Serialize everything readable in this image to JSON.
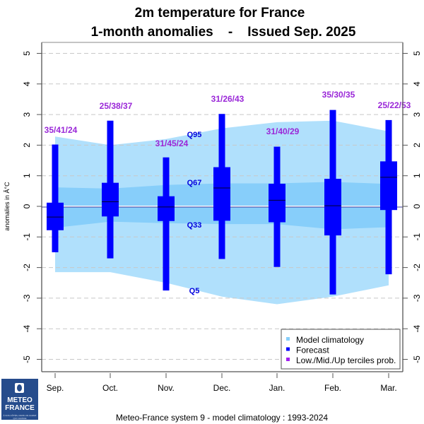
{
  "chart_data": {
    "type": "boxplot",
    "title": "2m temperature  for  France",
    "subtitle": "1-month anomalies    -    Issued Sep. 2025",
    "ylabel": "anomalies in Â°C",
    "xlabel": "",
    "ylim": [
      -5,
      5
    ],
    "yticks": [
      "5",
      "4",
      "3",
      "2",
      "1",
      "0",
      "-1",
      "-2",
      "-3",
      "-4",
      "-5"
    ],
    "ytick_values": [
      5,
      4,
      3,
      2,
      1,
      0,
      -1,
      -2,
      -3,
      -4,
      -5
    ],
    "grid": true,
    "categories": [
      "Sep.",
      "Oct.",
      "Nov.",
      "Dec.",
      "Jan.",
      "Feb.",
      "Mar."
    ],
    "forecast": {
      "whisker_high": [
        2.02,
        2.8,
        1.6,
        3.02,
        1.95,
        3.15,
        2.82
      ],
      "box_high": [
        0.12,
        0.77,
        0.33,
        1.28,
        0.74,
        0.9,
        1.47
      ],
      "median": [
        -0.35,
        0.15,
        -0.02,
        0.6,
        0.2,
        0.02,
        0.95
      ],
      "box_low": [
        -0.78,
        -0.33,
        -0.48,
        -0.47,
        -0.52,
        -0.95,
        -0.12
      ],
      "whisker_low": [
        -1.5,
        -1.7,
        -2.75,
        -1.72,
        -1.98,
        -2.88,
        -2.22
      ]
    },
    "climatology": {
      "Q95": [
        2.28,
        2.0,
        2.2,
        2.55,
        2.75,
        2.8,
        2.45
      ],
      "Q67": [
        0.62,
        0.58,
        0.7,
        0.75,
        0.75,
        0.8,
        0.73
      ],
      "Q33": [
        -0.7,
        -0.5,
        -0.55,
        -0.58,
        -0.58,
        -0.75,
        -0.68
      ],
      "Q5": [
        -2.15,
        -2.15,
        -2.5,
        -2.95,
        -3.2,
        -2.95,
        -2.58
      ]
    },
    "tercile_probs": [
      "35/41/24",
      "25/38/37",
      "31/45/24",
      "31/26/43",
      "31/40/29",
      "35/30/35",
      "25/22/53"
    ],
    "quantile_labels": {
      "q95": "Q95",
      "q67": "Q67",
      "q33": "Q33",
      "q5": "Q5"
    },
    "legend": {
      "position": "bottom-right",
      "items": [
        {
          "label": "Model climatology",
          "color": "#87cefa"
        },
        {
          "label": "Forecast",
          "color": "#0000ff"
        },
        {
          "label": "Low./Mid./Up terciles prob.",
          "color": "#a020f0"
        }
      ]
    },
    "colors": {
      "outer_band": "#b0e0fc",
      "inner_band": "#87cefa",
      "forecast": "#0000ff",
      "prob": "#9a27d8",
      "quantile_text": "#0000dd",
      "zero_line": "#3a3aa0"
    }
  },
  "footer": "Meteo-France system 9  -  model climatology : 1993-2024",
  "logo": {
    "line1": "METEO",
    "line2": "FRANCE",
    "tagline": "À VOS CÔTÉS, DANS UN CLIMAT QUI CHANGE"
  }
}
